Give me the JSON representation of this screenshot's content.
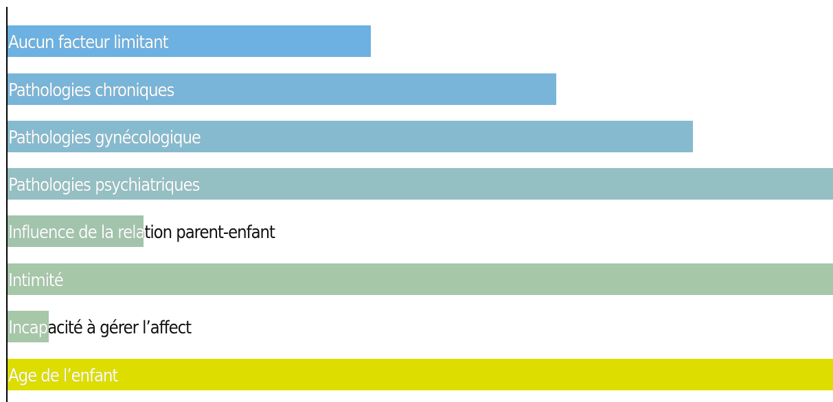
{
  "chart_data": {
    "type": "bar",
    "orientation": "horizontal",
    "title": "",
    "xlabel": "",
    "ylabel": "",
    "grid": false,
    "xlim": [
      0,
      100
    ],
    "categories": [
      "Aucun facteur limitant",
      "Pathologies chroniques",
      "Pathologies gynécologique",
      "Pathologies psychiatriques",
      "Influence de la relation parent-enfant",
      "Intimité",
      "Incapacité à gérer l’affect",
      "Age de l’enfant"
    ],
    "values": [
      44,
      66.5,
      83,
      100,
      16.5,
      100,
      5,
      100
    ],
    "colors": [
      "#6cb1e1",
      "#79b5d8",
      "#86bacf",
      "#94bfc3",
      "#a2c4ac",
      "#a6c7a8",
      "#a6c7a8",
      "#dddd00"
    ]
  }
}
